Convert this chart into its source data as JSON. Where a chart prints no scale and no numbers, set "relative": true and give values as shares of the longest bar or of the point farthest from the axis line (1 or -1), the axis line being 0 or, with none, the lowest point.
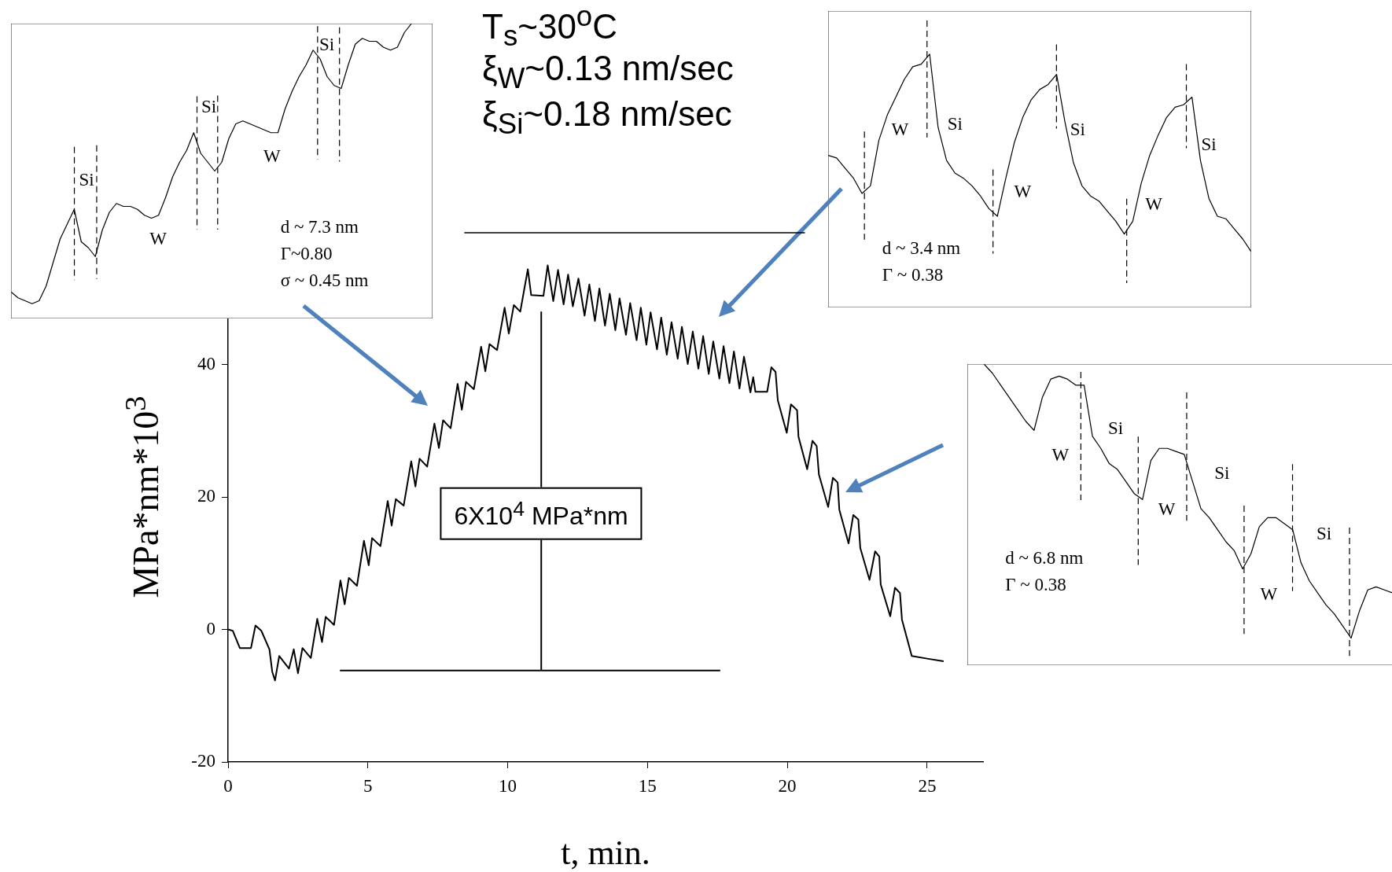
{
  "chart_data": [
    {
      "type": "line",
      "xlabel": "t, min.",
      "ylabel": "MPa*nm*10$^{3}$",
      "xlim": [
        0,
        27
      ],
      "ylim": [
        -20,
        56
      ],
      "xticks": [
        0,
        5,
        10,
        15,
        20,
        25
      ],
      "yticks": [
        -20,
        0,
        20,
        40
      ],
      "annotations": [
        "T$_{s}$~30$^{o}$C",
        "ξ$_{W}$~0.13 nm/sec",
        "ξ$_{Si}$~0.18 nm/sec",
        "6X10$^{4}$ MPa*nm"
      ],
      "x": [
        0,
        0.17,
        0.42,
        0.82,
        0.98,
        1.19,
        1.48,
        1.58,
        1.68,
        1.83,
        2.18,
        2.35,
        2.5,
        2.66,
        2.96,
        3.19,
        3.36,
        3.49,
        3.79,
        4.02,
        4.17,
        4.32,
        4.61,
        4.86,
        5.03,
        5.15,
        5.45,
        5.71,
        5.85,
        6.0,
        6.28,
        6.55,
        6.7,
        6.85,
        7.12,
        7.38,
        7.54,
        7.69,
        7.96,
        8.21,
        8.36,
        8.51,
        8.79,
        9.05,
        9.2,
        9.35,
        9.62,
        9.89,
        10.04,
        10.22,
        10.45,
        10.72,
        10.84,
        11.28,
        11.43,
        11.63,
        11.8,
        12.0,
        12.16,
        12.33,
        12.53,
        12.75,
        12.92,
        13.12,
        13.28,
        13.48,
        13.65,
        13.85,
        14.0,
        14.23,
        14.38,
        14.61,
        14.76,
        14.96,
        15.11,
        15.34,
        15.49,
        15.69,
        15.86,
        16.08,
        16.23,
        16.44,
        16.62,
        16.82,
        16.99,
        17.19,
        17.35,
        17.57,
        17.72,
        17.93,
        18.09,
        18.29,
        18.45,
        18.68,
        18.78,
        18.86,
        19.28,
        19.43,
        19.58,
        19.66,
        19.98,
        20.13,
        20.35,
        20.4,
        20.71,
        20.9,
        21.05,
        21.13,
        21.46,
        21.63,
        21.8,
        21.86,
        22.19,
        22.36,
        22.54,
        22.61,
        22.94,
        23.14,
        23.29,
        23.34,
        23.68,
        23.85,
        24.03,
        24.1,
        24.45,
        25.0,
        25.59
      ],
      "series": [
        {
          "color": "#000000",
          "values": [
            0,
            -0.2,
            -2.8,
            -2.8,
            0.6,
            -0.2,
            -3.0,
            -6.4,
            -7.7,
            -4.0,
            -5.9,
            -3.0,
            -6.6,
            -2.8,
            -4.3,
            1.6,
            -1.9,
            1.9,
            0.7,
            7.4,
            3.8,
            7.8,
            6.6,
            13.4,
            9.7,
            13.8,
            12.6,
            19.4,
            15.7,
            19.7,
            18.7,
            25.4,
            21.6,
            25.8,
            24.6,
            31.1,
            27.4,
            31.6,
            30.4,
            37.1,
            33.2,
            37.4,
            36.3,
            42.7,
            39.0,
            43.1,
            42.2,
            48.6,
            44.7,
            49.0,
            48.0,
            54.4,
            50.5,
            50.4,
            55.0,
            49.6,
            54.3,
            49.1,
            53.6,
            48.8,
            53.0,
            47.4,
            52.1,
            46.6,
            51.5,
            45.9,
            50.7,
            45.2,
            50.0,
            44.5,
            49.3,
            43.7,
            48.6,
            43.0,
            47.9,
            42.3,
            47.1,
            41.5,
            46.4,
            40.9,
            45.7,
            40.1,
            45.0,
            39.4,
            44.3,
            38.6,
            43.5,
            37.9,
            42.8,
            37.2,
            42.0,
            36.4,
            41.2,
            35.8,
            38.1,
            35.9,
            35.9,
            39.6,
            38.9,
            34.6,
            29.7,
            34.0,
            33.1,
            29.1,
            24.2,
            28.5,
            27.7,
            23.4,
            18.5,
            22.9,
            22.2,
            18.1,
            13.0,
            17.3,
            16.6,
            12.3,
            7.5,
            11.8,
            11.0,
            6.8,
            2.0,
            6.3,
            5.5,
            1.5,
            -4.0,
            -4.4,
            -4.8
          ]
        },
        {
          "type": "line",
          "color": "#000000",
          "x": [
            4.0,
            17.6
          ],
          "values": [
            -6.2,
            -6.2
          ]
        },
        {
          "type": "line",
          "color": "#000000",
          "x": [
            11.2,
            11.2
          ],
          "values": [
            -6.2,
            48.0
          ]
        }
      ]
    },
    {
      "type": "line",
      "relative": true,
      "categories": [
        null,
        null,
        null,
        null,
        null,
        null,
        null,
        null,
        null,
        null,
        null,
        null,
        null,
        null,
        null,
        null,
        null,
        null,
        null,
        null,
        null,
        null,
        null,
        null,
        null,
        null,
        null,
        null,
        null,
        null,
        null,
        null,
        null,
        null,
        null,
        null,
        null,
        null,
        null,
        null,
        null,
        null,
        null,
        null,
        null,
        null,
        null,
        null,
        null,
        null,
        null,
        null,
        null,
        null,
        null,
        null,
        null,
        null,
        null,
        null,
        null
      ],
      "series": [
        {
          "color": "#000000",
          "values": [
            0.09,
            0.07,
            0.06,
            0.05,
            0.06,
            0.11,
            0.19,
            0.27,
            0.32,
            0.37,
            0.26,
            0.24,
            0.21,
            0.3,
            0.36,
            0.39,
            0.38,
            0.38,
            0.37,
            0.35,
            0.34,
            0.35,
            0.41,
            0.48,
            0.53,
            0.57,
            0.63,
            0.56,
            0.53,
            0.5,
            0.53,
            0.61,
            0.66,
            0.67,
            0.66,
            0.65,
            0.64,
            0.63,
            0.63,
            0.71,
            0.77,
            0.82,
            0.86,
            0.91,
            0.88,
            0.82,
            0.79,
            0.78,
            0.86,
            0.93,
            0.95,
            0.94,
            0.94,
            0.92,
            0.91,
            0.92,
            0.97,
            1,
            null,
            null,
            null
          ]
        }
      ],
      "annotations": [
        "Si",
        "W",
        "Si",
        "W",
        "Si",
        "d ~ 7.3 nm",
        "Γ~0.80",
        "σ ~ 0.45 nm"
      ]
    },
    {
      "type": "line",
      "relative": true,
      "categories": [
        null,
        null,
        null,
        null,
        null,
        null,
        null,
        null,
        null,
        null,
        null,
        null,
        null,
        null,
        null,
        null,
        null,
        null,
        null,
        null,
        null,
        null,
        null,
        null,
        null,
        null,
        null,
        null,
        null,
        null,
        null,
        null,
        null,
        null,
        null,
        null,
        null,
        null,
        null,
        null,
        null,
        null,
        null,
        null,
        null,
        null,
        null,
        null,
        null,
        null,
        null
      ],
      "series": [
        {
          "color": "#000000",
          "values": [
            0.6,
            0.59,
            0.55,
            0.51,
            0.45,
            0.48,
            0.66,
            0.76,
            0.83,
            0.9,
            0.95,
            0.96,
            1,
            0.71,
            0.58,
            0.53,
            0.51,
            0.48,
            0.44,
            0.39,
            0.36,
            0.51,
            0.65,
            0.75,
            0.82,
            0.86,
            0.88,
            0.92,
            0.73,
            0.57,
            0.48,
            0.44,
            0.42,
            0.38,
            0.34,
            0.29,
            0.34,
            0.49,
            0.6,
            0.68,
            0.75,
            0.79,
            0.8,
            0.83,
            0.58,
            0.43,
            0.36,
            0.35,
            0.31,
            0.27,
            0.22
          ]
        }
      ],
      "annotations": [
        "W",
        "Si",
        "W",
        "Si",
        "W",
        "Si",
        "d ~ 3.4 nm",
        "Γ ~ 0.38"
      ]
    },
    {
      "type": "line",
      "relative": true,
      "categories": [
        null,
        null,
        null,
        null,
        null,
        null,
        null,
        null,
        null,
        null,
        null,
        null,
        null,
        null,
        null,
        null,
        null,
        null,
        null,
        null,
        null,
        null,
        null,
        null,
        null,
        null,
        null,
        null,
        null,
        null,
        null,
        null,
        null,
        null,
        null,
        null,
        null,
        null,
        null,
        null,
        null,
        null,
        null,
        null,
        null,
        null,
        null,
        null,
        null,
        null,
        null,
        null
      ],
      "series": [
        {
          "color": "#000000",
          "values": [
            null,
            null,
            1,
            0.97,
            0.93,
            0.89,
            0.85,
            0.81,
            0.78,
            0.89,
            0.95,
            0.96,
            0.95,
            0.93,
            0.93,
            0.76,
            0.72,
            0.67,
            0.65,
            0.61,
            0.57,
            0.55,
            0.68,
            0.72,
            0.72,
            0.71,
            0.7,
            0.61,
            0.52,
            0.49,
            0.45,
            0.41,
            0.38,
            0.32,
            0.37,
            0.46,
            0.49,
            0.49,
            0.47,
            0.45,
            0.34,
            0.28,
            0.24,
            0.2,
            0.17,
            0.13,
            0.09,
            0.18,
            0.25,
            0.26,
            0.25,
            0.24
          ]
        }
      ],
      "annotations": [
        "W",
        "Si",
        "W",
        "Si",
        "W",
        "Si",
        "d ~ 6.8 nm",
        "Γ ~ 0.38"
      ]
    }
  ]
}
